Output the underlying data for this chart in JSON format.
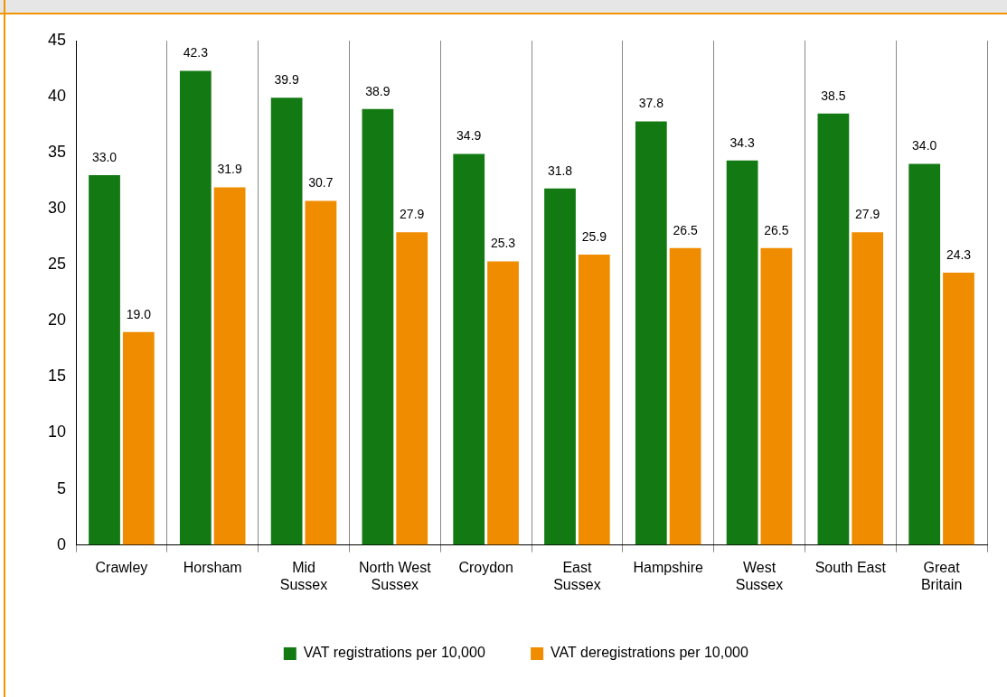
{
  "chart_data": {
    "type": "bar",
    "categories": [
      "Crawley",
      "Horsham",
      "Mid Sussex",
      "North West Sussex",
      "Croydon",
      "East Sussex",
      "Hampshire",
      "West Sussex",
      "South East",
      "Great Britain"
    ],
    "series": [
      {
        "name": "VAT registrations per 10,000",
        "color": "#137a13",
        "values": [
          33.0,
          42.3,
          39.9,
          38.9,
          34.9,
          31.8,
          37.8,
          34.3,
          38.5,
          34.0
        ],
        "value_labels": [
          "33.0",
          "42.3",
          "39.9",
          "38.9",
          "34.9",
          "31.8",
          "37.8",
          "34.3",
          "38.5",
          "34.0"
        ]
      },
      {
        "name": "VAT deregistrations per 10,000",
        "color": "#f08c00",
        "values": [
          19.0,
          31.9,
          30.7,
          27.9,
          25.3,
          25.9,
          26.5,
          26.5,
          27.9,
          24.3
        ],
        "value_labels": [
          "19.0",
          "31.9",
          "30.7",
          "27.9",
          "25.3",
          "25.9",
          "26.5",
          "26.5",
          "27.9",
          "24.3"
        ]
      }
    ],
    "ylim": [
      0,
      45
    ],
    "yticks": [
      0,
      5,
      10,
      15,
      20,
      25,
      30,
      35,
      40,
      45
    ],
    "grid": "x",
    "legend": "bottom"
  }
}
